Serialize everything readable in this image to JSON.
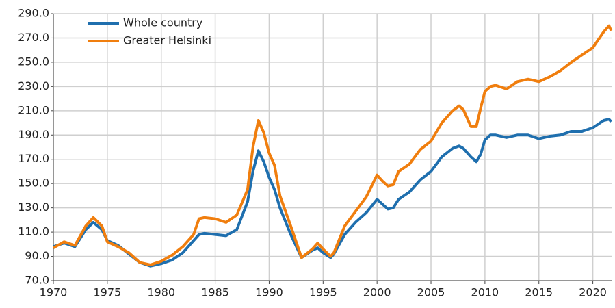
{
  "chart_data": {
    "type": "line",
    "x": [
      1970,
      1971,
      1972,
      1973,
      1973.7,
      1974.5,
      1975,
      1976,
      1977,
      1978,
      1979,
      1980,
      1981,
      1982,
      1983,
      1983.5,
      1984,
      1985,
      1986,
      1987,
      1988,
      1988.5,
      1989,
      1989.5,
      1990,
      1990.5,
      1991,
      1992,
      1993,
      1994,
      1994.5,
      1995,
      1995.7,
      1996,
      1997,
      1998,
      1999,
      2000,
      2000.5,
      2001,
      2001.5,
      2002,
      2003,
      2004,
      2005,
      2006,
      2007,
      2007.6,
      2008,
      2008.7,
      2009.2,
      2009.6,
      2010,
      2010.5,
      2011,
      2012,
      2013,
      2014,
      2015,
      2016,
      2017,
      2018,
      2019,
      2020,
      2021,
      2021.5,
      2021.7
    ],
    "series": [
      {
        "name": "Whole country",
        "color": "#1f6fae",
        "values": [
          98,
          101,
          98,
          112,
          118,
          112,
          103,
          99,
          92,
          85,
          82,
          84,
          87,
          93,
          103,
          108,
          109,
          108,
          107,
          112,
          135,
          160,
          177,
          168,
          155,
          145,
          130,
          108,
          89,
          95,
          97,
          93,
          89,
          92,
          108,
          118,
          126,
          137,
          133,
          129,
          130,
          137,
          143,
          153,
          160,
          172,
          179,
          181,
          179,
          172,
          168,
          174,
          186,
          190,
          190,
          188,
          190,
          190,
          187,
          189,
          190,
          193,
          193,
          196,
          202,
          203,
          201
        ]
      },
      {
        "name": "Greater Helsinki",
        "color": "#f07e0e",
        "values": [
          97,
          102,
          99,
          115,
          122,
          115,
          102,
          98,
          93,
          85,
          83,
          86,
          91,
          98,
          108,
          121,
          122,
          121,
          118,
          124,
          145,
          180,
          202,
          192,
          175,
          165,
          140,
          115,
          89,
          96,
          101,
          96,
          90,
          93,
          115,
          127,
          139,
          157,
          152,
          148,
          149,
          160,
          166,
          178,
          185,
          200,
          210,
          214,
          211,
          197,
          197,
          212,
          226,
          230,
          231,
          228,
          234,
          236,
          234,
          238,
          243,
          250,
          256,
          262,
          275,
          280,
          276
        ]
      }
    ],
    "xlim": [
      1970,
      2021.8
    ],
    "xticks": [
      1970,
      1975,
      1980,
      1985,
      1990,
      1995,
      2000,
      2005,
      2010,
      2015,
      2020
    ],
    "ylim": [
      70,
      290
    ],
    "yticks": [
      {
        "value": 70,
        "label": "70.0"
      },
      {
        "value": 90,
        "label": "90.0"
      },
      {
        "value": 110,
        "label": "110.0"
      },
      {
        "value": 130,
        "label": "130.0"
      },
      {
        "value": 150,
        "label": "150.0"
      },
      {
        "value": 170,
        "label": "170.0"
      },
      {
        "value": 190,
        "label": "190.0"
      },
      {
        "value": 210,
        "label": "210.0"
      },
      {
        "value": 230,
        "label": "230.0"
      },
      {
        "value": 250,
        "label": "250.0"
      },
      {
        "value": 270,
        "label": "270.0"
      },
      {
        "value": 290,
        "label": "290.0"
      }
    ],
    "grid": true,
    "legend": "top-left"
  }
}
